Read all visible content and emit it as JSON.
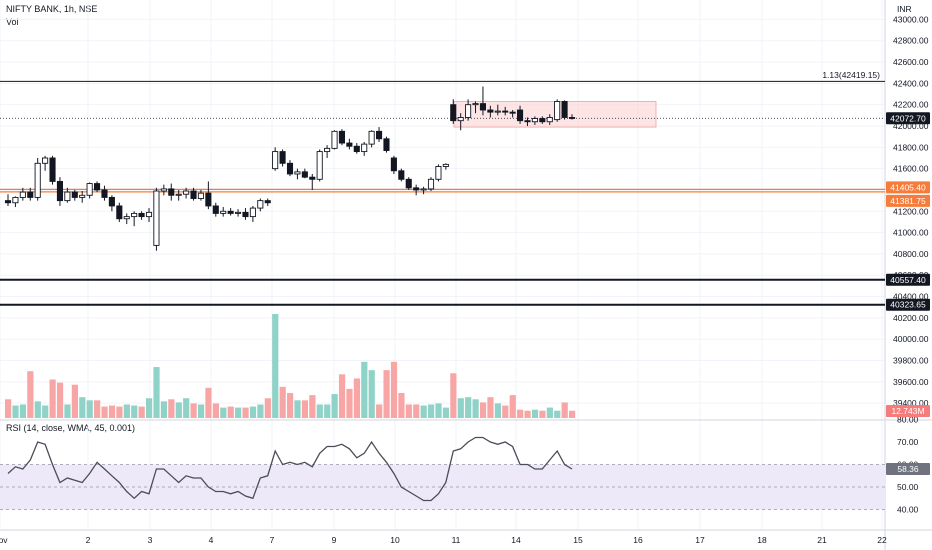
{
  "header": {
    "symbol_line": "NIFTY BANK, 1h, NSE",
    "volume_label": "Vol",
    "currency": "INR"
  },
  "rsi_header": "RSI (14, close, WMA, 45, 0.001)",
  "fib_label": "1.13(42419.15)",
  "price_tags": [
    {
      "value": "42072.70",
      "bg": "#131722",
      "fg": "#ffffff"
    },
    {
      "value": "41405.40",
      "bg": "#f57c3a",
      "fg": "#ffffff"
    },
    {
      "value": "41381.75",
      "bg": "#f57c3a",
      "fg": "#ffffff"
    },
    {
      "value": "40557.40",
      "bg": "#131722",
      "fg": "#ffffff"
    },
    {
      "value": "40323.65",
      "bg": "#131722",
      "fg": "#ffffff"
    }
  ],
  "volume_tag": {
    "value": "12.743M",
    "bg": "#f57c7c",
    "fg": "#ffffff"
  },
  "rsi_tag": {
    "value": "58.36",
    "bg": "#6f7380",
    "fg": "#ffffff"
  },
  "colors": {
    "up": "#ffffff",
    "down": "#131722",
    "vol_up": "#8fd2c7",
    "vol_down": "#f7a5a5",
    "rsi_line": "#4a4d57",
    "rsi_band": "#ede9f8",
    "zone": "#fbd3d3",
    "support": "#f57c3a"
  },
  "chart_data": {
    "type": "candlestick",
    "price_axis": {
      "ticks": [
        43000,
        42800,
        42600,
        42400,
        42200,
        42000,
        41800,
        41600,
        41400,
        41200,
        41000,
        40800,
        40600,
        40400,
        40200,
        40000,
        39800,
        39600,
        39400
      ]
    },
    "rsi_axis": {
      "ticks": [
        80,
        70,
        60,
        50,
        40
      ],
      "band": [
        40,
        60
      ],
      "mid": 50
    },
    "x_labels": [
      "Nov",
      "2",
      "3",
      "4",
      "7",
      "9",
      "10",
      "11",
      "14",
      "15",
      "16",
      "17",
      "18",
      "21",
      "22"
    ],
    "horizontal_levels": [
      42419.15,
      42072.7,
      41405.4,
      41381.75,
      40557.4,
      40323.65
    ],
    "resistance_zone": [
      41990,
      42230
    ],
    "candles": [
      {
        "o": 41300,
        "h": 41360,
        "l": 41250,
        "c": 41280
      },
      {
        "o": 41280,
        "h": 41340,
        "l": 41240,
        "c": 41330
      },
      {
        "o": 41330,
        "h": 41420,
        "l": 41300,
        "c": 41380
      },
      {
        "o": 41380,
        "h": 41420,
        "l": 41300,
        "c": 41330
      },
      {
        "o": 41330,
        "h": 41700,
        "l": 41300,
        "c": 41650
      },
      {
        "o": 41650,
        "h": 41720,
        "l": 41580,
        "c": 41700
      },
      {
        "o": 41700,
        "h": 41720,
        "l": 41450,
        "c": 41480
      },
      {
        "o": 41480,
        "h": 41520,
        "l": 41250,
        "c": 41300
      },
      {
        "o": 41300,
        "h": 41420,
        "l": 41280,
        "c": 41380
      },
      {
        "o": 41380,
        "h": 41400,
        "l": 41300,
        "c": 41330
      },
      {
        "o": 41330,
        "h": 41390,
        "l": 41280,
        "c": 41350
      },
      {
        "o": 41350,
        "h": 41470,
        "l": 41320,
        "c": 41460
      },
      {
        "o": 41460,
        "h": 41480,
        "l": 41380,
        "c": 41400
      },
      {
        "o": 41400,
        "h": 41440,
        "l": 41300,
        "c": 41330
      },
      {
        "o": 41330,
        "h": 41350,
        "l": 41200,
        "c": 41250
      },
      {
        "o": 41250,
        "h": 41280,
        "l": 41100,
        "c": 41130
      },
      {
        "o": 41130,
        "h": 41180,
        "l": 41080,
        "c": 41150
      },
      {
        "o": 41150,
        "h": 41200,
        "l": 41060,
        "c": 41180
      },
      {
        "o": 41180,
        "h": 41200,
        "l": 41120,
        "c": 41150
      },
      {
        "o": 41150,
        "h": 41230,
        "l": 41100,
        "c": 41190
      },
      {
        "o": 40880,
        "h": 41420,
        "l": 40830,
        "c": 41390
      },
      {
        "o": 41390,
        "h": 41450,
        "l": 41350,
        "c": 41410
      },
      {
        "o": 41410,
        "h": 41460,
        "l": 41300,
        "c": 41350
      },
      {
        "o": 41350,
        "h": 41400,
        "l": 41300,
        "c": 41360
      },
      {
        "o": 41360,
        "h": 41420,
        "l": 41320,
        "c": 41390
      },
      {
        "o": 41390,
        "h": 41420,
        "l": 41300,
        "c": 41320
      },
      {
        "o": 41320,
        "h": 41400,
        "l": 41300,
        "c": 41370
      },
      {
        "o": 41370,
        "h": 41480,
        "l": 41220,
        "c": 41250
      },
      {
        "o": 41250,
        "h": 41280,
        "l": 41150,
        "c": 41180
      },
      {
        "o": 41180,
        "h": 41240,
        "l": 41150,
        "c": 41200
      },
      {
        "o": 41200,
        "h": 41230,
        "l": 41160,
        "c": 41180
      },
      {
        "o": 41180,
        "h": 41220,
        "l": 41150,
        "c": 41190
      },
      {
        "o": 41190,
        "h": 41230,
        "l": 41120,
        "c": 41150
      },
      {
        "o": 41150,
        "h": 41250,
        "l": 41100,
        "c": 41230
      },
      {
        "o": 41230,
        "h": 41320,
        "l": 41200,
        "c": 41300
      },
      {
        "o": 41300,
        "h": 41320,
        "l": 41250,
        "c": 41280
      },
      {
        "o": 41600,
        "h": 41800,
        "l": 41580,
        "c": 41760
      },
      {
        "o": 41760,
        "h": 41780,
        "l": 41620,
        "c": 41650
      },
      {
        "o": 41650,
        "h": 41680,
        "l": 41530,
        "c": 41550
      },
      {
        "o": 41550,
        "h": 41600,
        "l": 41500,
        "c": 41570
      },
      {
        "o": 41570,
        "h": 41600,
        "l": 41510,
        "c": 41520
      },
      {
        "o": 41520,
        "h": 41550,
        "l": 41400,
        "c": 41500
      },
      {
        "o": 41500,
        "h": 41780,
        "l": 41480,
        "c": 41760
      },
      {
        "o": 41760,
        "h": 41820,
        "l": 41700,
        "c": 41790
      },
      {
        "o": 41790,
        "h": 41960,
        "l": 41780,
        "c": 41950
      },
      {
        "o": 41950,
        "h": 41970,
        "l": 41820,
        "c": 41840
      },
      {
        "o": 41840,
        "h": 41880,
        "l": 41780,
        "c": 41810
      },
      {
        "o": 41810,
        "h": 41840,
        "l": 41740,
        "c": 41760
      },
      {
        "o": 41760,
        "h": 41850,
        "l": 41720,
        "c": 41830
      },
      {
        "o": 41830,
        "h": 41960,
        "l": 41800,
        "c": 41950
      },
      {
        "o": 41950,
        "h": 41990,
        "l": 41850,
        "c": 41880
      },
      {
        "o": 41880,
        "h": 41900,
        "l": 41750,
        "c": 41770
      },
      {
        "o": 41700,
        "h": 41720,
        "l": 41550,
        "c": 41580
      },
      {
        "o": 41580,
        "h": 41600,
        "l": 41480,
        "c": 41500
      },
      {
        "o": 41500,
        "h": 41520,
        "l": 41400,
        "c": 41420
      },
      {
        "o": 41420,
        "h": 41450,
        "l": 41350,
        "c": 41400
      },
      {
        "o": 41400,
        "h": 41430,
        "l": 41360,
        "c": 41410
      },
      {
        "o": 41410,
        "h": 41520,
        "l": 41390,
        "c": 41500
      },
      {
        "o": 41500,
        "h": 41640,
        "l": 41480,
        "c": 41620
      },
      {
        "o": 41620,
        "h": 41650,
        "l": 41590,
        "c": 41640
      },
      {
        "o": 42200,
        "h": 42250,
        "l": 42020,
        "c": 42050
      },
      {
        "o": 42050,
        "h": 42120,
        "l": 41960,
        "c": 42080
      },
      {
        "o": 42080,
        "h": 42250,
        "l": 42050,
        "c": 42200
      },
      {
        "o": 42200,
        "h": 42230,
        "l": 42120,
        "c": 42210
      },
      {
        "o": 42210,
        "h": 42370,
        "l": 42100,
        "c": 42150
      },
      {
        "o": 42150,
        "h": 42190,
        "l": 42080,
        "c": 42130
      },
      {
        "o": 42130,
        "h": 42200,
        "l": 42100,
        "c": 42140
      },
      {
        "o": 42140,
        "h": 42180,
        "l": 42100,
        "c": 42130
      },
      {
        "o": 42130,
        "h": 42150,
        "l": 42080,
        "c": 42120
      },
      {
        "o": 42150,
        "h": 42190,
        "l": 42020,
        "c": 42050
      },
      {
        "o": 42050,
        "h": 42080,
        "l": 42000,
        "c": 42040
      },
      {
        "o": 42040,
        "h": 42090,
        "l": 42010,
        "c": 42070
      },
      {
        "o": 42070,
        "h": 42090,
        "l": 42020,
        "c": 42040
      },
      {
        "o": 42040,
        "h": 42110,
        "l": 42010,
        "c": 42080
      },
      {
        "o": 42060,
        "h": 42250,
        "l": 42040,
        "c": 42230
      },
      {
        "o": 42230,
        "h": 42240,
        "l": 42060,
        "c": 42080
      },
      {
        "o": 42080,
        "h": 42110,
        "l": 42060,
        "c": 42073
      }
    ],
    "volume_ratio": [
      0.18,
      0.12,
      0.13,
      0.45,
      0.16,
      0.12,
      0.37,
      0.34,
      0.13,
      0.32,
      0.2,
      0.17,
      0.17,
      0.11,
      0.12,
      0.11,
      0.13,
      0.12,
      0.11,
      0.19,
      0.49,
      0.16,
      0.18,
      0.15,
      0.19,
      0.14,
      0.13,
      0.29,
      0.14,
      0.1,
      0.11,
      0.1,
      0.1,
      0.11,
      0.13,
      0.19,
      1.0,
      0.3,
      0.24,
      0.17,
      0.17,
      0.22,
      0.13,
      0.13,
      0.23,
      0.42,
      0.28,
      0.38,
      0.54,
      0.46,
      0.13,
      0.46,
      0.54,
      0.24,
      0.13,
      0.13,
      0.12,
      0.13,
      0.14,
      0.1,
      0.43,
      0.19,
      0.2,
      0.18,
      0.15,
      0.2,
      0.14,
      0.12,
      0.22,
      0.08,
      0.07,
      0.08,
      0.07,
      0.1,
      0.07,
      0.15,
      0.07
    ],
    "rsi": [
      56,
      59,
      58,
      62,
      70,
      69,
      60,
      52,
      54,
      53,
      52,
      56,
      61,
      58,
      55,
      52,
      48,
      45,
      48,
      47,
      58,
      58,
      55,
      52,
      55,
      54,
      54,
      50,
      48,
      48,
      47,
      48,
      46,
      45,
      54,
      55,
      66,
      60,
      61,
      60,
      61,
      59,
      65,
      68,
      68,
      69,
      67,
      63,
      65,
      70,
      65,
      61,
      56,
      50,
      48,
      46,
      44,
      44,
      47,
      52,
      66,
      67,
      70,
      72,
      72,
      70,
      69,
      70,
      68,
      60,
      60,
      58,
      58,
      62,
      66,
      60,
      58
    ]
  }
}
